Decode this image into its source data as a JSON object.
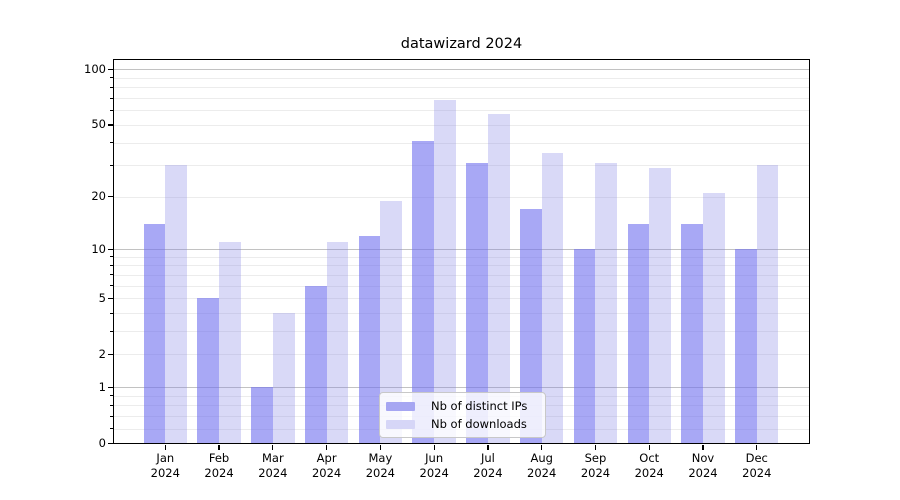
{
  "chart_data": {
    "type": "bar",
    "title": "datawizard 2024",
    "categories": [
      "Jan 2024",
      "Feb 2024",
      "Mar 2024",
      "Apr 2024",
      "May 2024",
      "Jun 2024",
      "Jul 2024",
      "Aug 2024",
      "Sep 2024",
      "Oct 2024",
      "Nov 2024",
      "Dec 2024"
    ],
    "series": [
      {
        "name": "Nb of distinct IPs",
        "color": "#a6a6f2",
        "fill": "rgba(110,110,238,0.6)",
        "values": [
          14,
          5,
          1,
          6,
          12,
          41,
          31,
          17,
          10,
          14,
          14,
          10
        ]
      },
      {
        "name": "Nb of downloads",
        "color": "#d6d6f7",
        "fill": "rgba(128,128,228,0.3)",
        "values": [
          30,
          11,
          4,
          11,
          19,
          68,
          57,
          35,
          31,
          29,
          21,
          30
        ]
      }
    ],
    "xlabel": "",
    "ylabel": "",
    "yscale": "log1p",
    "ylim": [
      0,
      115
    ],
    "ytick_values": [
      0,
      1,
      2,
      5,
      10,
      20,
      50,
      100
    ],
    "ytick_labels": [
      "0",
      "1",
      "2",
      "5",
      "10",
      "20",
      "50",
      "100"
    ],
    "major_gridline_values": [
      1,
      10,
      100
    ],
    "minor_gridline_values": [
      0.2,
      0.4,
      0.6,
      0.8,
      2,
      3,
      4,
      5,
      6,
      7,
      8,
      9,
      20,
      30,
      40,
      50,
      60,
      70,
      80,
      90
    ],
    "grid": true,
    "legend_position": "lower-center",
    "major_grid_color": "#c2c2c2",
    "minor_grid_color": "#ececec",
    "axis_color": "#000000"
  }
}
